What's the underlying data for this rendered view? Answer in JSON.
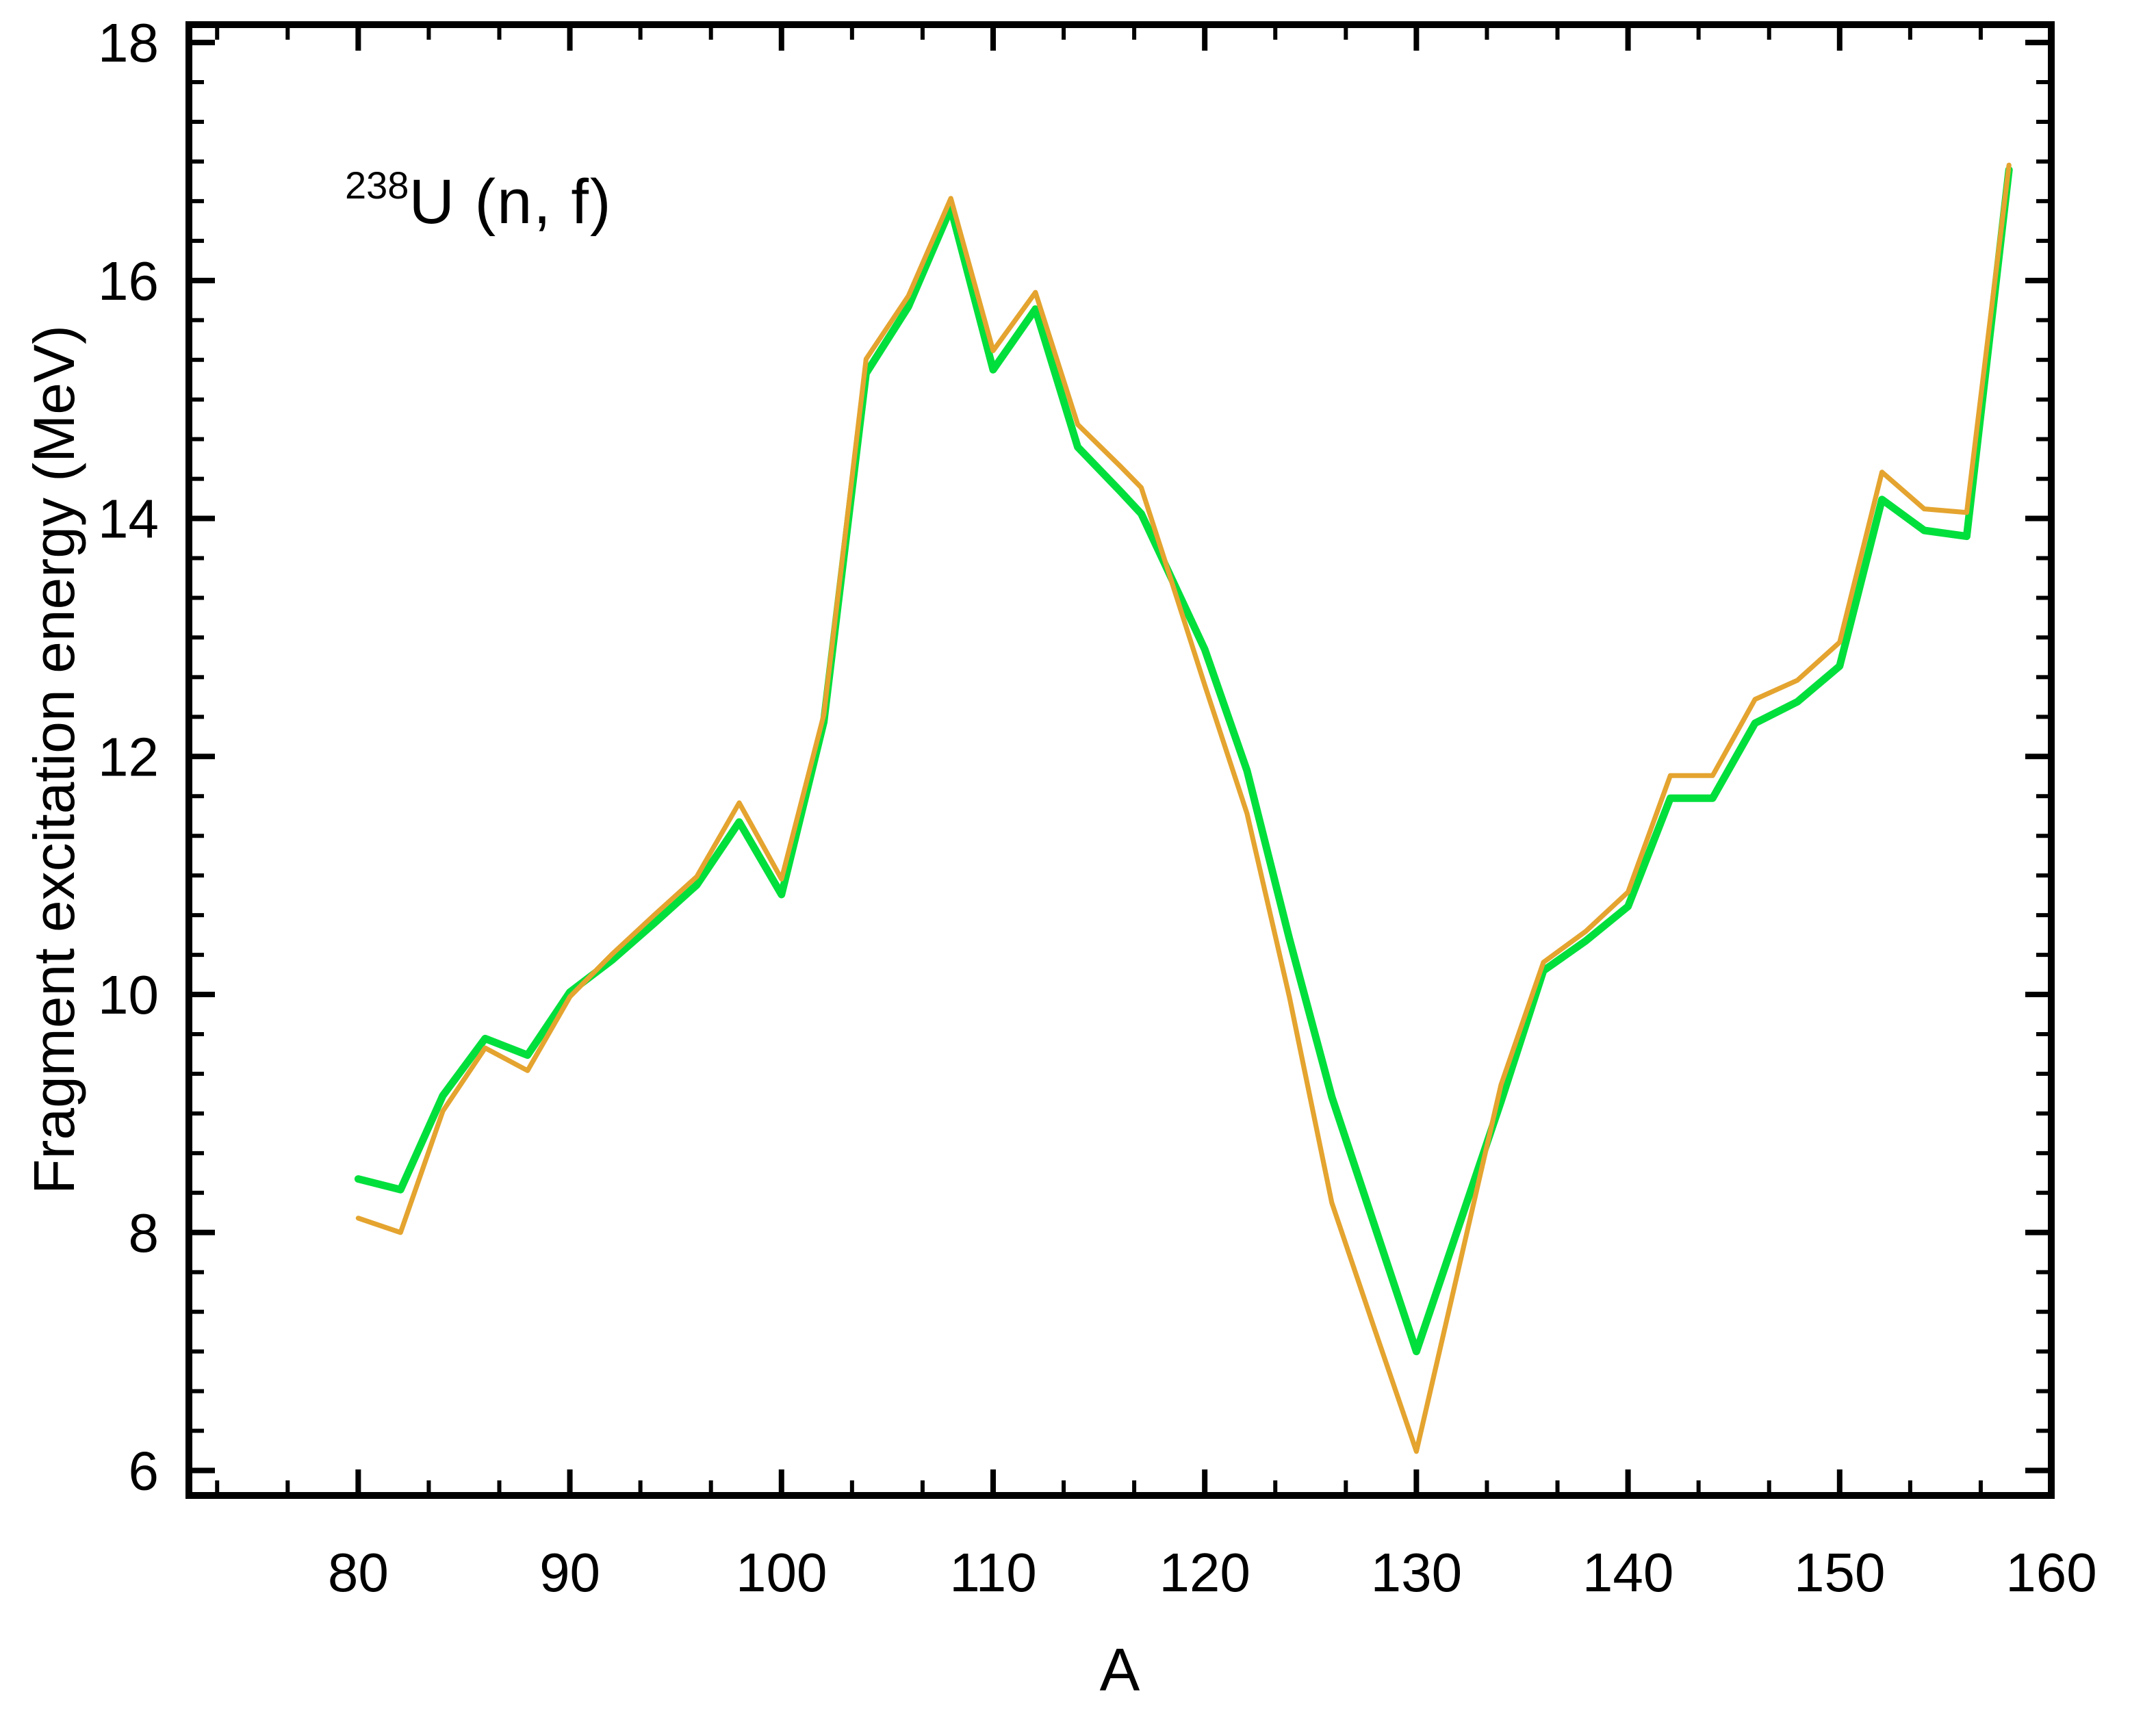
{
  "page": {
    "background_color": "#ffffff",
    "text_color": "#000000"
  },
  "chart_data": {
    "type": "line",
    "annotation": {
      "isotope_mass": "238",
      "isotope_label": "U (n, f)"
    },
    "xlabel": "A",
    "ylabel": "Fragment excitation energy (MeV)",
    "xlim": [
      72,
      160
    ],
    "ylim": [
      5.79,
      18.15
    ],
    "x_major_ticks": [
      80,
      90,
      100,
      110,
      120,
      130,
      140,
      150,
      160
    ],
    "x_minor_step": 3.33333,
    "y_major_ticks": [
      6,
      8,
      10,
      12,
      14,
      16,
      18
    ],
    "y_minor_step": 0.33333,
    "grid": false,
    "legend_position": "none",
    "axis_color": "#000000",
    "x": [
      80,
      82,
      84,
      86,
      88,
      90,
      92,
      94,
      96,
      98,
      100,
      102,
      104,
      106,
      108,
      110,
      112,
      114,
      116,
      117,
      118,
      120,
      122,
      124,
      126,
      128,
      130,
      132,
      134,
      136,
      138,
      140,
      142,
      144,
      146,
      148,
      150,
      152,
      154,
      156,
      158
    ],
    "series": [
      {
        "name": "green-curve",
        "color": "#00DF3C",
        "stroke_width": 5.5,
        "values": [
          8.45,
          8.36,
          9.15,
          9.63,
          9.49,
          10.02,
          10.29,
          10.6,
          10.92,
          11.45,
          10.84,
          12.29,
          15.22,
          15.78,
          16.61,
          15.25,
          15.76,
          14.6,
          14.23,
          14.04,
          13.66,
          12.9,
          11.88,
          10.47,
          9.14,
          8.07,
          7.0,
          8.05,
          9.1,
          10.2,
          10.45,
          10.74,
          11.65,
          11.65,
          12.28,
          12.46,
          12.76,
          14.16,
          13.9,
          13.85,
          16.93
        ]
      },
      {
        "name": "orange-curve",
        "color": "#E4A42F",
        "stroke_width": 3.6,
        "values": [
          8.12,
          8.0,
          9.02,
          9.55,
          9.36,
          9.98,
          10.34,
          10.67,
          10.99,
          11.61,
          10.97,
          12.35,
          15.34,
          15.87,
          16.69,
          15.41,
          15.9,
          14.79,
          14.44,
          14.26,
          13.71,
          12.6,
          11.52,
          9.98,
          8.25,
          7.2,
          6.16,
          7.7,
          9.24,
          10.27,
          10.53,
          10.86,
          11.84,
          11.84,
          12.48,
          12.64,
          12.96,
          14.39,
          14.08,
          14.05,
          16.97
        ]
      }
    ]
  }
}
